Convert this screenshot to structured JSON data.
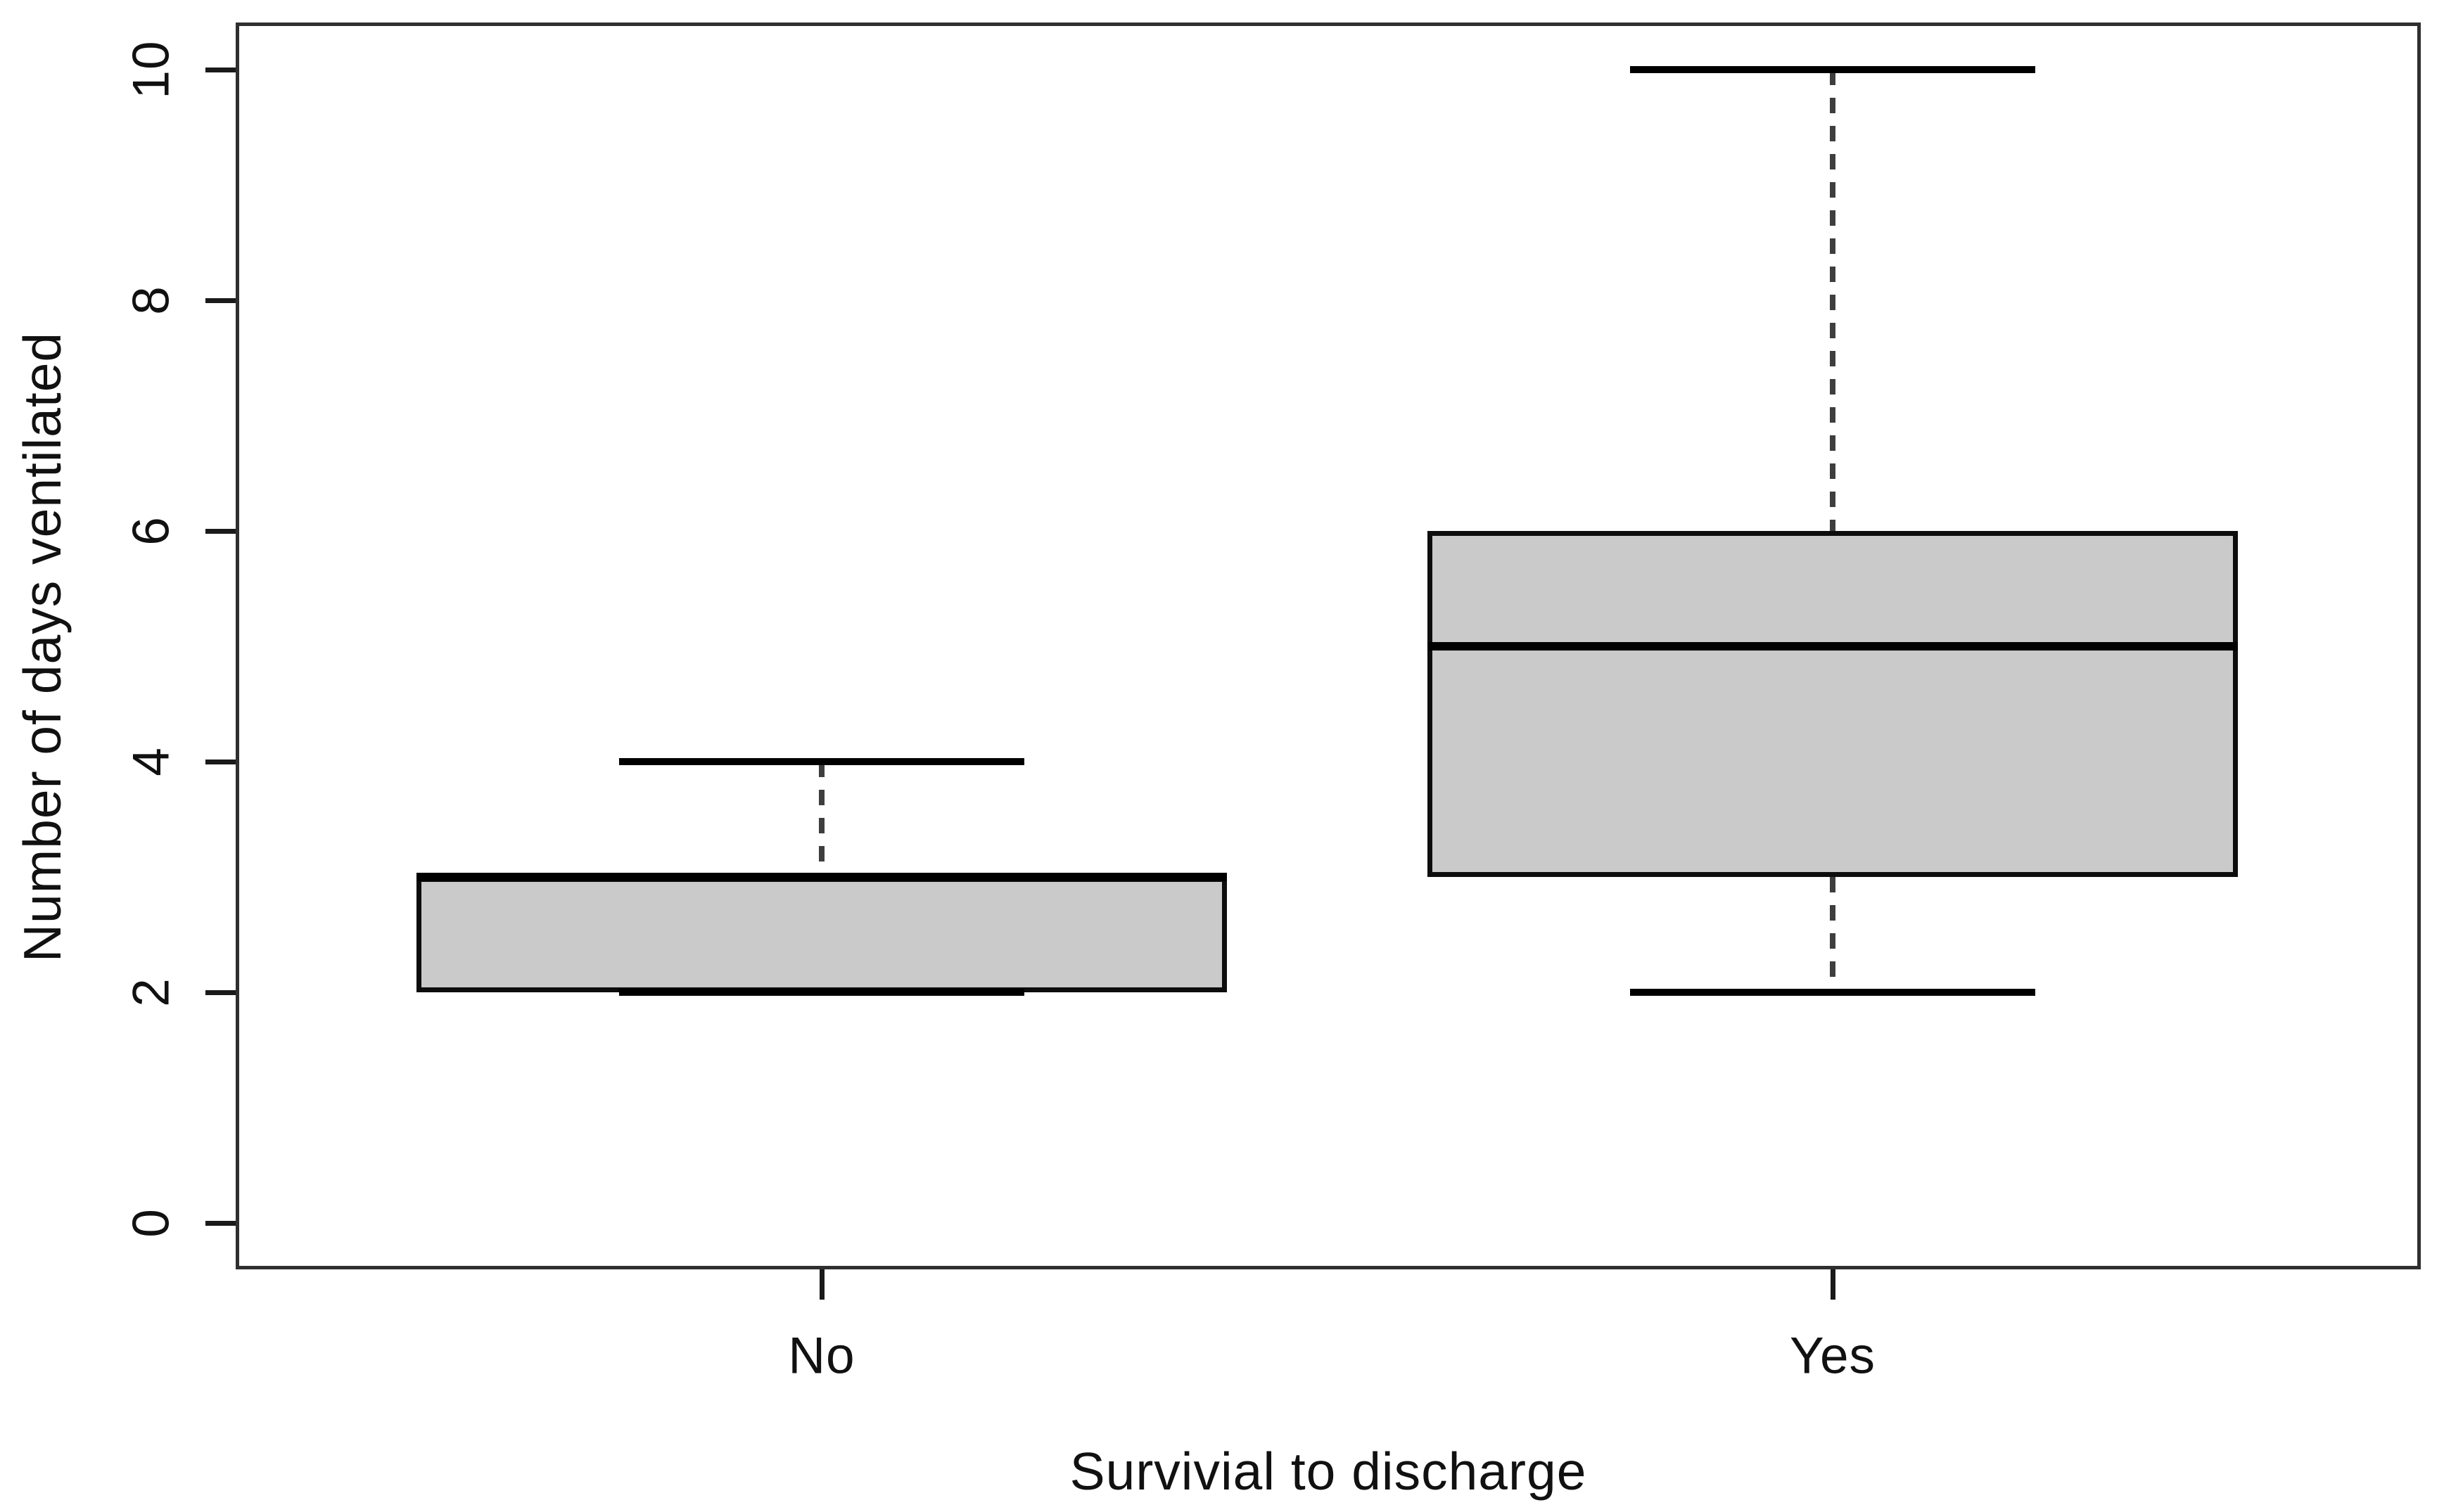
{
  "chart_data": {
    "type": "box",
    "title": "",
    "xlabel": "Survivial to discharge",
    "ylabel": "Number of days ventilated",
    "categories": [
      "No",
      "Yes"
    ],
    "yticks": [
      0,
      2,
      4,
      6,
      8,
      10
    ],
    "ylim": [
      0,
      10
    ],
    "grid": false,
    "legend": "none",
    "series": [
      {
        "name": "No",
        "min": 2,
        "q1": 2,
        "median": 3,
        "q3": 3,
        "max": 4,
        "outliers": []
      },
      {
        "name": "Yes",
        "min": 2,
        "q1": 3,
        "median": 5,
        "q3": 6,
        "max": 10,
        "outliers": []
      }
    ],
    "colors": {
      "box_fill": "#cacaca",
      "box_border": "#0d0d0d",
      "median": "#000000",
      "whisker_dash": "#3e3e3e",
      "frame": "#2f2f2f",
      "text": "#111111",
      "background": "#ffffff"
    }
  }
}
